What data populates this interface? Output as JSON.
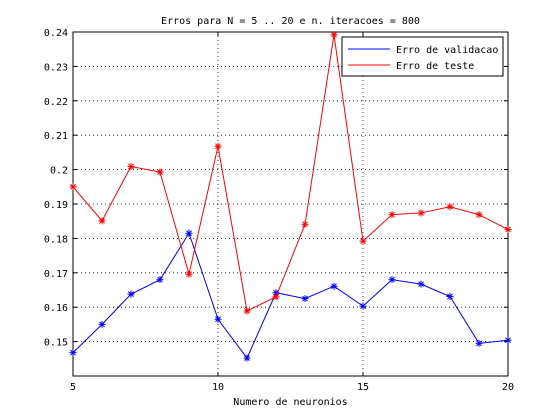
{
  "chart_data": {
    "type": "line",
    "title": "Erros para N = 5 .. 20 e n. iteracoes = 800",
    "xlabel": "Numero de neuronios",
    "ylabel": "",
    "xlim": [
      5,
      20
    ],
    "ylim": [
      0.14,
      0.24
    ],
    "xticks": [
      5,
      10,
      15,
      20
    ],
    "xtick_labels": [
      "5",
      "10",
      "15",
      "20"
    ],
    "yticks": [
      0.15,
      0.16,
      0.17,
      0.18,
      0.19,
      0.2,
      0.21,
      0.22,
      0.23,
      0.24
    ],
    "ytick_labels": [
      "0.15",
      "0.16",
      "0.17",
      "0.18",
      "0.19",
      "0.2",
      "0.21",
      "0.22",
      "0.23",
      "0.24"
    ],
    "grid": true,
    "legend_position": "top-right",
    "x": [
      5,
      6,
      7,
      8,
      9,
      10,
      11,
      12,
      13,
      14,
      15,
      16,
      17,
      18,
      19,
      20
    ],
    "series": [
      {
        "name": "Erro de validacao",
        "color": "#0000ff",
        "marker": "asterisk",
        "values": [
          0.1468,
          0.155,
          0.1638,
          0.168,
          0.1815,
          0.1565,
          0.1452,
          0.1642,
          0.1625,
          0.1661,
          0.1603,
          0.168,
          0.1667,
          0.1631,
          0.1495,
          0.1504
        ]
      },
      {
        "name": "Erro de teste",
        "color": "#ff0000",
        "marker": "asterisk",
        "values": [
          0.195,
          0.1851,
          0.2009,
          0.1993,
          0.1696,
          0.2068,
          0.1589,
          0.163,
          0.1841,
          0.2392,
          0.1792,
          0.1869,
          0.1874,
          0.1892,
          0.1869,
          0.1826
        ]
      }
    ]
  }
}
